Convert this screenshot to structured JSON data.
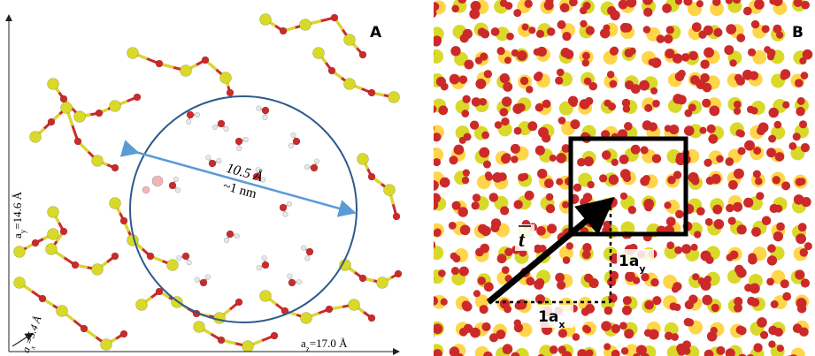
{
  "panel_a": {
    "panel_label": "A",
    "diameter_value": "10.5 Å",
    "diameter_approx": "~1 nm",
    "axis_y_label": "a",
    "axis_y_sub": "y",
    "axis_y_value": "=14.6 Å",
    "axis_z_label": "a",
    "axis_z_sub": "z",
    "axis_z_value": "=17.0 Å",
    "axis_x_label": "a",
    "axis_x_sub": "x",
    "axis_x_value": "=5.4 Å"
  },
  "panel_b": {
    "panel_label": "B",
    "vector_label": "t",
    "ax_label": "1a",
    "ax_sub": "x",
    "ay_label": "1a",
    "ay_sub": "y"
  },
  "colors": {
    "silicon": "#d9d92a",
    "oxygen": "#cc2a2a",
    "hydrogen": "#e8e8e8",
    "circle": "#2f5a8c",
    "arrow": "#5b9bd5"
  }
}
